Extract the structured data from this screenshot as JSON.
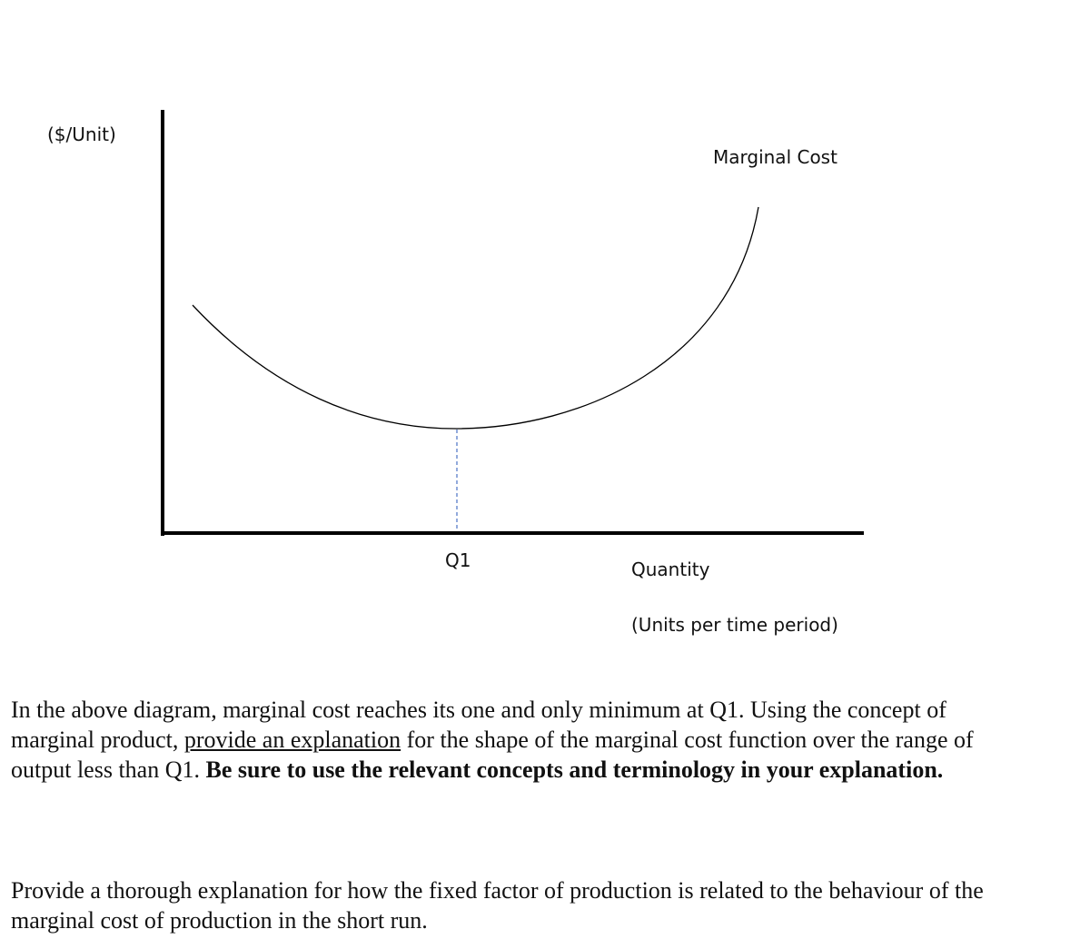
{
  "diagram": {
    "y_axis_label": "($/Unit)",
    "curve_label": "Marginal Cost",
    "q1_label": "Q1",
    "x_axis_label": "Quantity",
    "x_axis_sublabel": "(Units per time period)"
  },
  "question_1": {
    "segments": [
      "In the above diagram, marginal cost reaches its one and only minimum at Q1.  Using the concept of",
      "marginal product, ",
      "provide an explanation",
      " for the shape of the marginal cost function over the range of",
      "output less than Q1.  ",
      "Be sure to use the relevant concepts and terminology in your explanation."
    ]
  },
  "question_2": {
    "lines": [
      "Provide a thorough explanation for how the fixed factor of production is related to the behaviour of the",
      "marginal cost of production in the short run."
    ]
  }
}
